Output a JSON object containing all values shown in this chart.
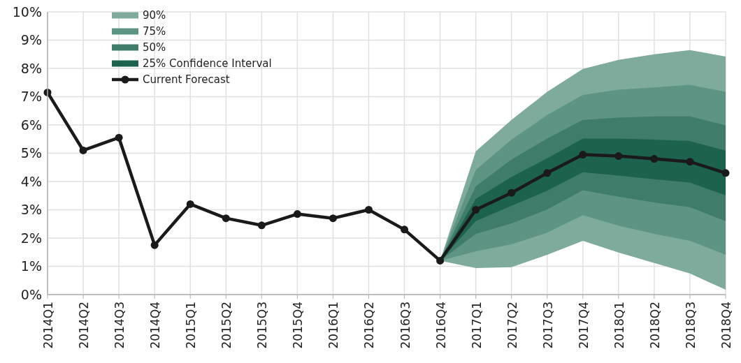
{
  "chart_data": {
    "type": "line",
    "categories": [
      "2014Q1",
      "2014Q2",
      "2014Q3",
      "2014Q4",
      "2015Q1",
      "2015Q2",
      "2015Q3",
      "2015Q4",
      "2016Q1",
      "2016Q2",
      "2016Q3",
      "2016Q4",
      "2017Q1",
      "2017Q2",
      "2017Q3",
      "2017Q4",
      "2018Q1",
      "2018Q2",
      "2018Q3",
      "2018Q4"
    ],
    "ylim": [
      0,
      10
    ],
    "yticks": [
      {
        "value": 0,
        "label": "0%"
      },
      {
        "value": 1,
        "label": "1%"
      },
      {
        "value": 2,
        "label": "2%"
      },
      {
        "value": 3,
        "label": "3%"
      },
      {
        "value": 4,
        "label": "4%"
      },
      {
        "value": 5,
        "label": "5%"
      },
      {
        "value": 6,
        "label": "6%"
      },
      {
        "value": 7,
        "label": "7%"
      },
      {
        "value": 8,
        "label": "8%"
      },
      {
        "value": 9,
        "label": "9%"
      },
      {
        "value": 10,
        "label": "10%"
      }
    ],
    "grid": true,
    "legend": "top left",
    "series": [
      {
        "name": "90%",
        "marker": "none",
        "color": "#7fab9c",
        "values": [
          null,
          null,
          null,
          null,
          null,
          null,
          null,
          null,
          null,
          null,
          null,
          null,
          null,
          null,
          null,
          null,
          null,
          null,
          null,
          null
        ],
        "upper": [
          null,
          null,
          null,
          null,
          null,
          null,
          null,
          null,
          null,
          null,
          null,
          1.2,
          5.07,
          6.18,
          7.17,
          7.98,
          8.3,
          8.5,
          8.65,
          8.42
        ],
        "lower": [
          null,
          null,
          null,
          null,
          null,
          null,
          null,
          null,
          null,
          null,
          null,
          1.2,
          0.94,
          0.97,
          1.41,
          1.9,
          1.49,
          1.12,
          0.75,
          0.17
        ]
      },
      {
        "name": "75%",
        "marker": "none",
        "color": "#5e9484",
        "values": [
          null,
          null,
          null,
          null,
          null,
          null,
          null,
          null,
          null,
          null,
          null,
          null,
          null,
          null,
          null,
          null,
          null,
          null,
          null,
          null
        ],
        "upper": [
          null,
          null,
          null,
          null,
          null,
          null,
          null,
          null,
          null,
          null,
          null,
          1.2,
          4.41,
          5.48,
          6.35,
          7.06,
          7.25,
          7.33,
          7.42,
          7.17
        ],
        "lower": [
          null,
          null,
          null,
          null,
          null,
          null,
          null,
          null,
          null,
          null,
          null,
          1.2,
          1.53,
          1.78,
          2.19,
          2.81,
          2.44,
          2.15,
          1.9,
          1.41
        ]
      },
      {
        "name": "50%",
        "marker": "none",
        "color": "#3f7c6a",
        "values": [
          null,
          null,
          null,
          null,
          null,
          null,
          null,
          null,
          null,
          null,
          null,
          null,
          null,
          null,
          null,
          null,
          null,
          null,
          null,
          null
        ],
        "upper": [
          null,
          null,
          null,
          null,
          null,
          null,
          null,
          null,
          null,
          null,
          null,
          1.2,
          3.83,
          4.78,
          5.52,
          6.18,
          6.26,
          6.3,
          6.3,
          5.99
        ],
        "lower": [
          null,
          null,
          null,
          null,
          null,
          null,
          null,
          null,
          null,
          null,
          null,
          1.2,
          2.15,
          2.52,
          3.01,
          3.69,
          3.46,
          3.26,
          3.09,
          2.6
        ]
      },
      {
        "name": "25% Confidence Interval",
        "marker": "none",
        "color": "#1c624f",
        "values": [
          null,
          null,
          null,
          null,
          null,
          null,
          null,
          null,
          null,
          null,
          null,
          null,
          null,
          null,
          null,
          null,
          null,
          null,
          null,
          null
        ],
        "upper": [
          null,
          null,
          null,
          null,
          null,
          null,
          null,
          null,
          null,
          null,
          null,
          1.2,
          3.38,
          4.16,
          4.82,
          5.52,
          5.52,
          5.48,
          5.43,
          5.09
        ],
        "lower": [
          null,
          null,
          null,
          null,
          null,
          null,
          null,
          null,
          null,
          null,
          null,
          1.2,
          2.6,
          3.14,
          3.67,
          4.33,
          4.21,
          4.08,
          3.96,
          3.51
        ]
      },
      {
        "name": "Current Forecast",
        "marker": "circle",
        "color": "#1a1a1a",
        "values": [
          7.15,
          5.1,
          5.55,
          1.75,
          3.2,
          2.7,
          2.45,
          2.85,
          2.7,
          3.0,
          2.3,
          1.2,
          3.0,
          3.6,
          4.3,
          4.95,
          4.9,
          4.8,
          4.7,
          4.3
        ]
      }
    ]
  }
}
